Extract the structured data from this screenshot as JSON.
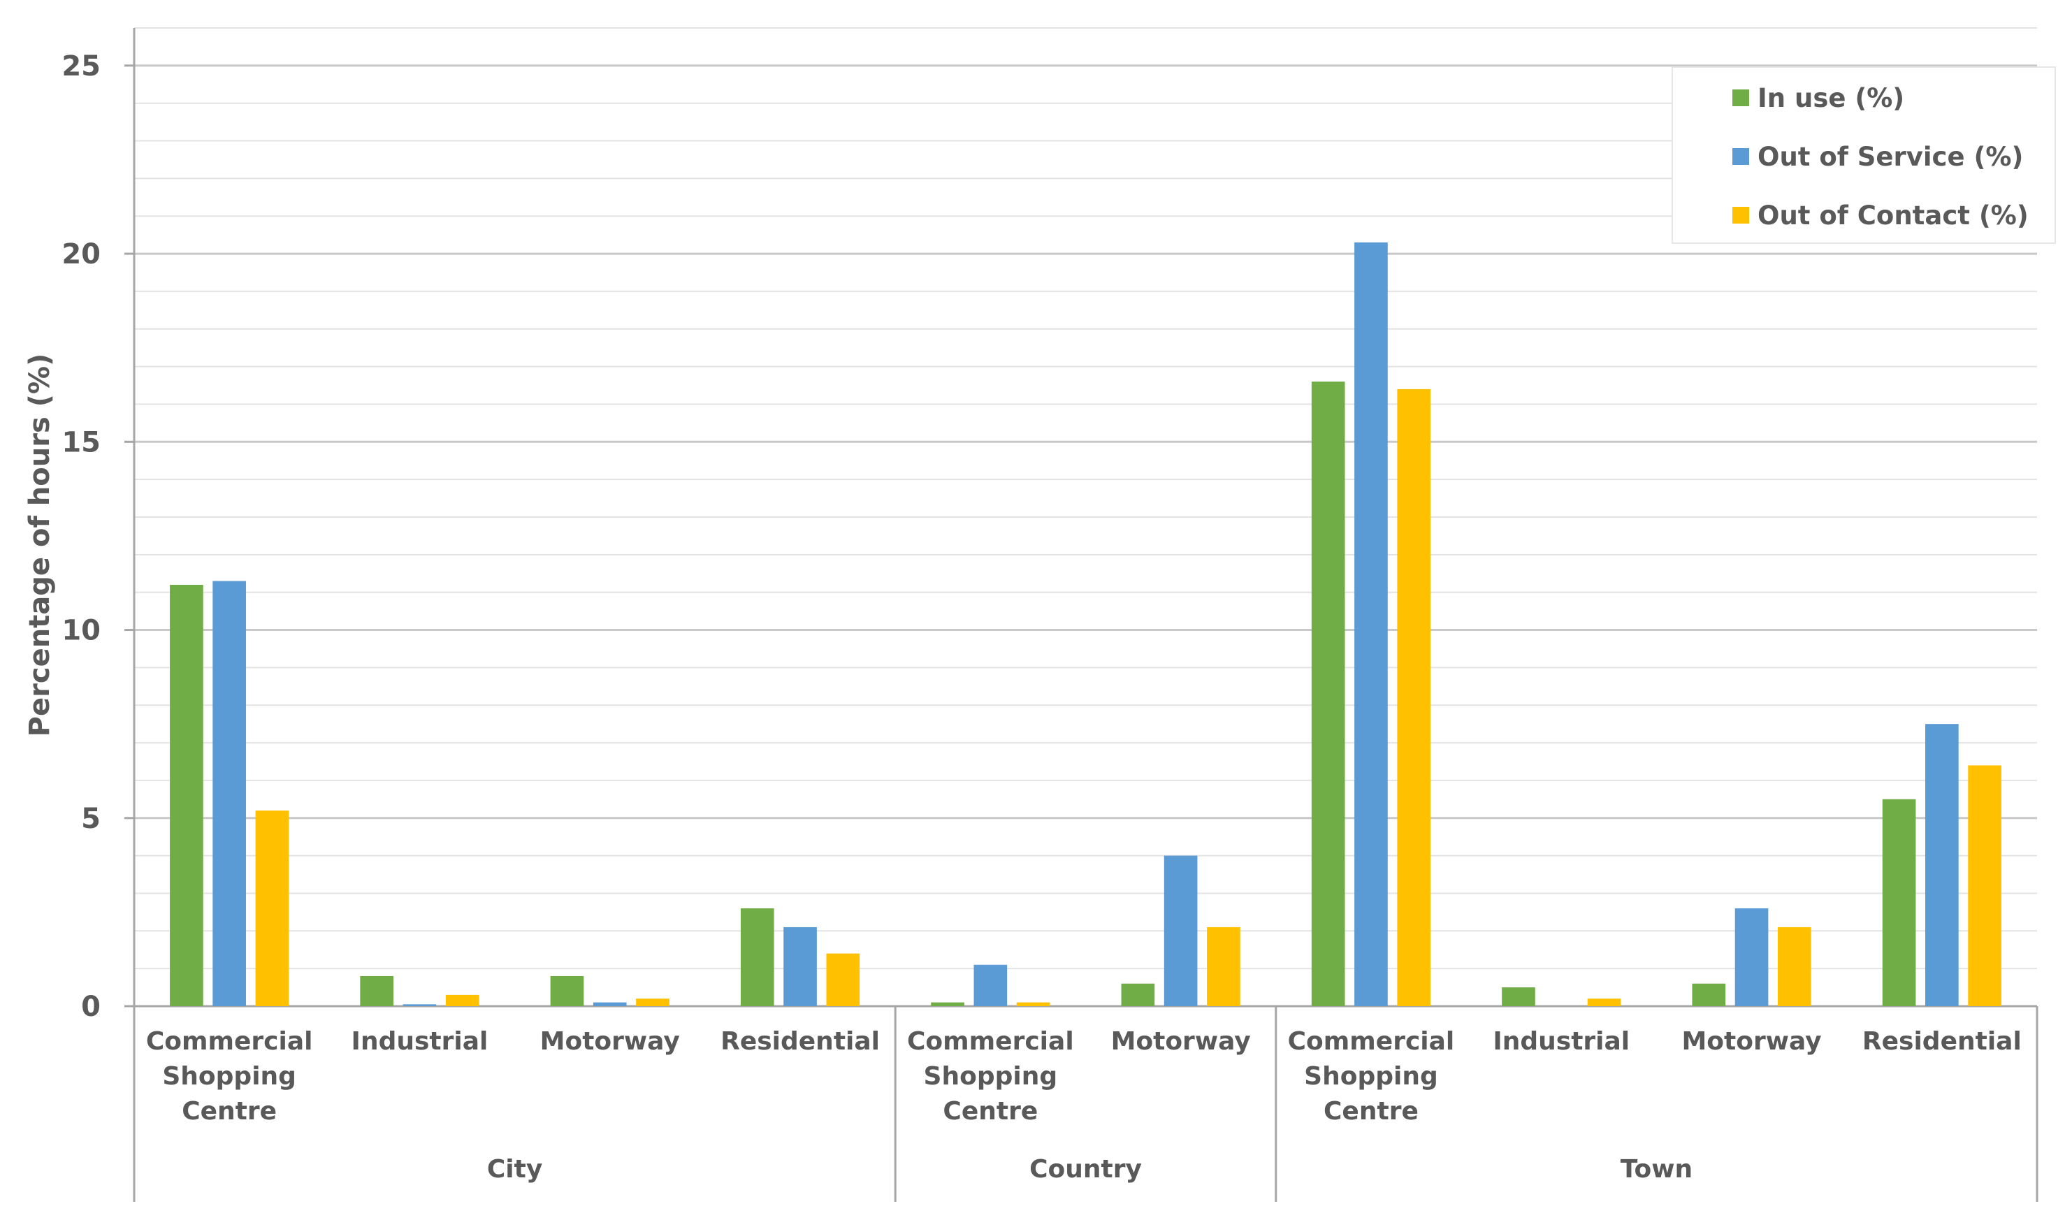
{
  "chart_data": {
    "type": "bar",
    "ylabel": "Percentage of hours (%)",
    "xlabel": "",
    "ylim": [
      0,
      25
    ],
    "yticks": [
      0,
      5,
      10,
      15,
      20,
      25
    ],
    "minor_grid_step": 1,
    "grid": true,
    "legend_position": "top-right",
    "groups": [
      {
        "name": "City",
        "categories": [
          "Commercial Shopping Centre",
          "Industrial",
          "Motorway",
          "Residential"
        ]
      },
      {
        "name": "Country",
        "categories": [
          "Commercial Shopping Centre",
          "Motorway"
        ]
      },
      {
        "name": "Town",
        "categories": [
          "Commercial Shopping Centre",
          "Industrial",
          "Motorway",
          "Residential"
        ]
      }
    ],
    "series": [
      {
        "name": "In use (%)",
        "color": "#70AD47",
        "values": [
          11.2,
          0.8,
          0.8,
          2.6,
          0.1,
          0.6,
          16.6,
          0.5,
          0.6,
          5.5
        ]
      },
      {
        "name": "Out of Service (%)",
        "color": "#5B9BD5",
        "values": [
          11.3,
          0.05,
          0.1,
          2.1,
          1.1,
          4.0,
          20.3,
          0.0,
          2.6,
          7.5
        ]
      },
      {
        "name": "Out of Contact (%)",
        "color": "#FFC000",
        "values": [
          5.2,
          0.3,
          0.2,
          1.4,
          0.1,
          2.1,
          16.4,
          0.2,
          2.1,
          6.4
        ]
      }
    ]
  }
}
